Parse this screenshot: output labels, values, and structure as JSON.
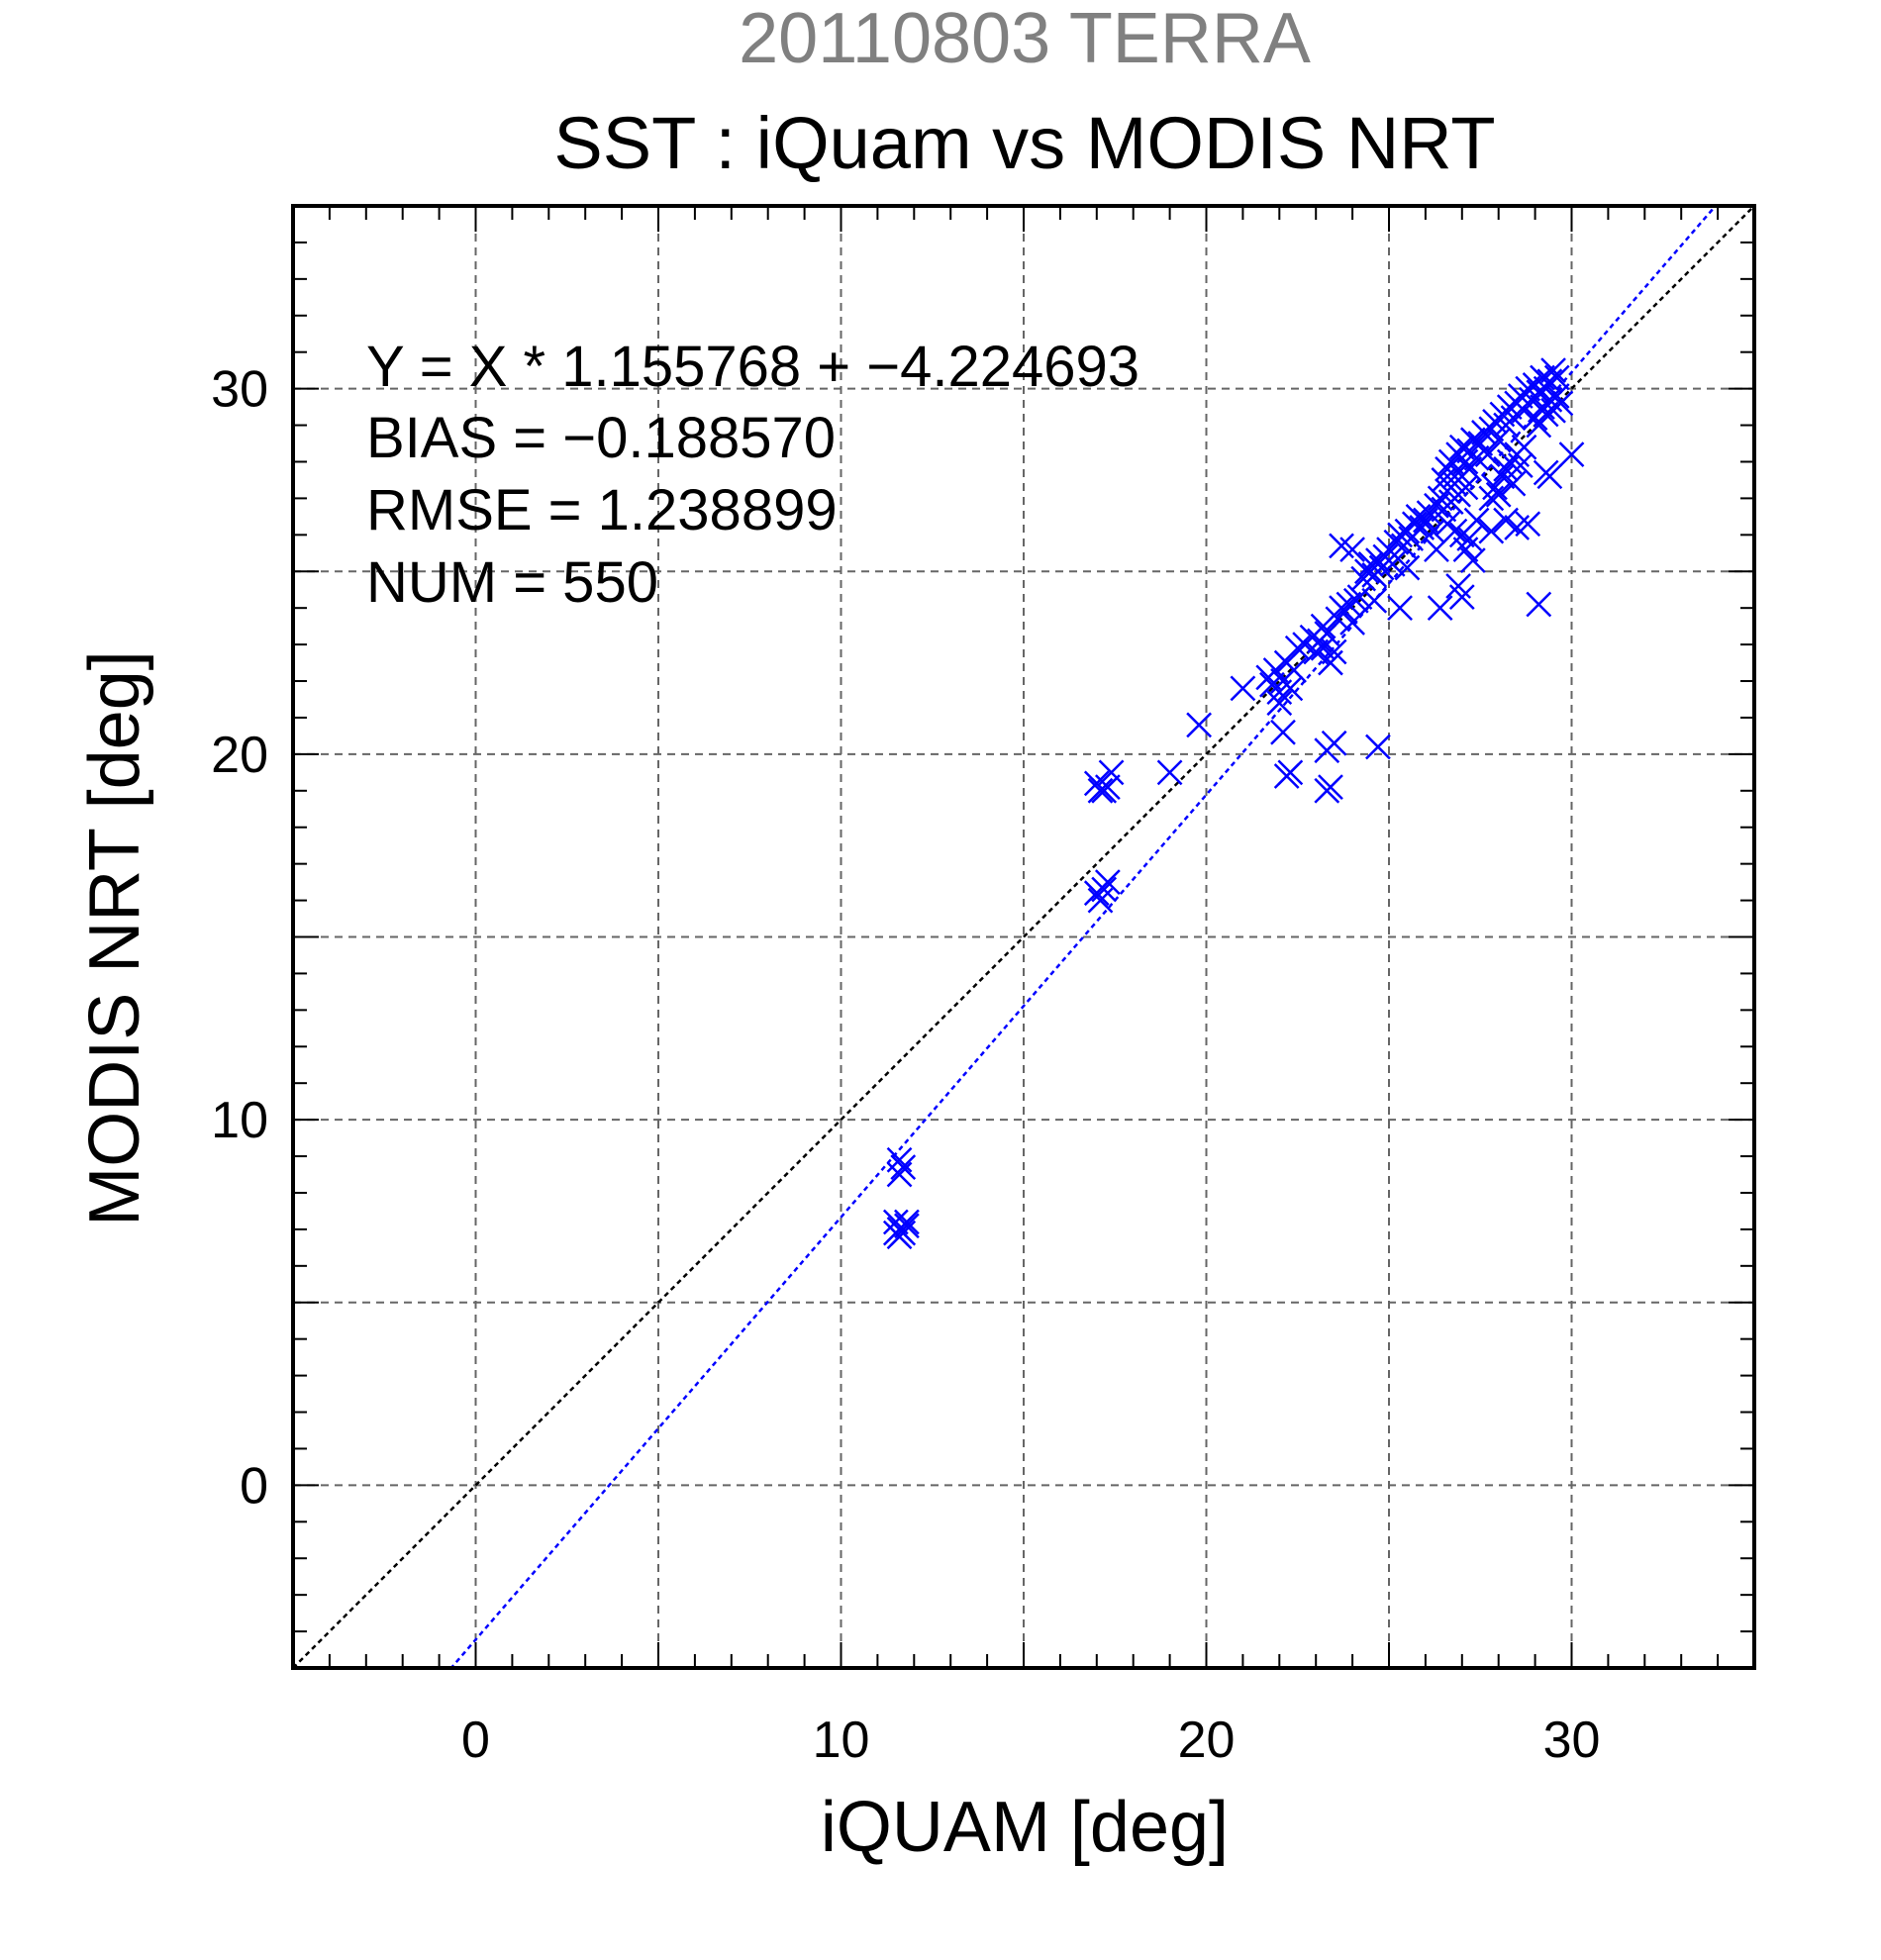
{
  "chart_data": {
    "type": "scatter",
    "suptitle": "20110803 TERRA",
    "title": "SST : iQuam vs MODIS NRT",
    "xlabel": "iQUAM [deg]",
    "ylabel": "MODIS NRT [deg]",
    "xlim": [
      -5,
      35
    ],
    "ylim": [
      -5,
      35
    ],
    "xticks": [
      0,
      10,
      20,
      30
    ],
    "yticks": [
      0,
      10,
      20,
      30
    ],
    "minor_step": 1,
    "grid": true,
    "grid_step": 5,
    "annotations": [
      "Y = X * 1.155768 + −4.224693",
      "BIAS = −0.188570",
      "RMSE = 1.238899",
      "NUM = 550"
    ],
    "regression": {
      "slope": 1.155768,
      "intercept": -4.224693,
      "color": "#0000ff"
    },
    "identity_line": {
      "color": "#000000"
    },
    "marker": "x",
    "marker_color": "#0000ff",
    "series": [
      {
        "points": [
          [
            11.6,
            8.9
          ],
          [
            11.7,
            8.7
          ],
          [
            11.6,
            8.5
          ],
          [
            11.5,
            7.2
          ],
          [
            11.6,
            7.0
          ],
          [
            11.7,
            6.9
          ],
          [
            11.8,
            7.1
          ],
          [
            11.6,
            6.8
          ],
          [
            11.8,
            7.2
          ],
          [
            11.5,
            6.9
          ],
          [
            17.0,
            19.2
          ],
          [
            17.1,
            19.0
          ],
          [
            17.3,
            19.1
          ],
          [
            17.2,
            19.0
          ],
          [
            17.4,
            19.5
          ],
          [
            17.0,
            16.2
          ],
          [
            17.1,
            16.0
          ],
          [
            17.3,
            16.5
          ],
          [
            17.2,
            16.3
          ],
          [
            19.0,
            19.5
          ],
          [
            19.8,
            20.8
          ],
          [
            21.0,
            21.8
          ],
          [
            21.7,
            22.1
          ],
          [
            21.8,
            21.9
          ],
          [
            21.9,
            22.3
          ],
          [
            22.0,
            21.7
          ],
          [
            22.0,
            21.4
          ],
          [
            22.1,
            22.0
          ],
          [
            22.2,
            22.5
          ],
          [
            22.3,
            21.8
          ],
          [
            22.4,
            22.3
          ],
          [
            22.5,
            22.9
          ],
          [
            22.2,
            19.4
          ],
          [
            22.3,
            19.5
          ],
          [
            22.1,
            20.6
          ],
          [
            23.3,
            19.0
          ],
          [
            23.4,
            19.1
          ],
          [
            23.5,
            20.3
          ],
          [
            23.3,
            20.1
          ],
          [
            24.7,
            20.2
          ],
          [
            22.7,
            23.0
          ],
          [
            22.9,
            23.2
          ],
          [
            23.0,
            22.8
          ],
          [
            23.1,
            23.1
          ],
          [
            23.2,
            22.9
          ],
          [
            23.3,
            23.3
          ],
          [
            23.4,
            22.5
          ],
          [
            23.5,
            22.8
          ],
          [
            23.2,
            23.5
          ],
          [
            23.6,
            23.7
          ],
          [
            23.7,
            24.0
          ],
          [
            23.8,
            23.9
          ],
          [
            23.9,
            24.1
          ],
          [
            24.0,
            23.6
          ],
          [
            24.1,
            24.2
          ],
          [
            24.2,
            24.3
          ],
          [
            23.7,
            25.7
          ],
          [
            24.0,
            25.6
          ],
          [
            24.3,
            24.8
          ],
          [
            24.4,
            25.0
          ],
          [
            24.5,
            25.2
          ],
          [
            24.6,
            24.9
          ],
          [
            24.7,
            25.3
          ],
          [
            24.8,
            25.1
          ],
          [
            24.9,
            25.4
          ],
          [
            25.0,
            25.6
          ],
          [
            25.1,
            25.2
          ],
          [
            24.6,
            24.2
          ],
          [
            25.3,
            24.0
          ],
          [
            25.2,
            25.8
          ],
          [
            25.3,
            26.0
          ],
          [
            25.4,
            25.7
          ],
          [
            25.5,
            26.1
          ],
          [
            25.6,
            25.9
          ],
          [
            25.7,
            26.3
          ],
          [
            25.8,
            26.5
          ],
          [
            25.9,
            26.2
          ],
          [
            26.0,
            26.4
          ],
          [
            26.1,
            26.6
          ],
          [
            26.2,
            26.1
          ],
          [
            26.3,
            26.8
          ],
          [
            26.4,
            27.0
          ],
          [
            26.5,
            26.7
          ],
          [
            26.6,
            27.2
          ],
          [
            26.7,
            26.9
          ],
          [
            26.8,
            27.4
          ],
          [
            26.9,
            27.1
          ],
          [
            27.0,
            27.6
          ],
          [
            27.1,
            27.3
          ],
          [
            27.2,
            27.8
          ],
          [
            26.5,
            27.5
          ],
          [
            26.6,
            27.8
          ],
          [
            26.7,
            28.0
          ],
          [
            26.8,
            27.6
          ],
          [
            26.9,
            28.2
          ],
          [
            27.0,
            28.4
          ],
          [
            27.1,
            28.0
          ],
          [
            27.2,
            28.3
          ],
          [
            27.3,
            28.6
          ],
          [
            27.4,
            28.1
          ],
          [
            26.6,
            26.3
          ],
          [
            26.8,
            26.1
          ],
          [
            27.0,
            26.0
          ],
          [
            27.1,
            25.6
          ],
          [
            27.3,
            25.3
          ],
          [
            26.9,
            24.6
          ],
          [
            27.0,
            24.3
          ],
          [
            26.4,
            24.0
          ],
          [
            27.2,
            25.9
          ],
          [
            27.4,
            26.4
          ],
          [
            27.5,
            28.5
          ],
          [
            27.6,
            28.8
          ],
          [
            27.7,
            28.2
          ],
          [
            27.8,
            28.9
          ],
          [
            27.9,
            29.1
          ],
          [
            28.0,
            28.6
          ],
          [
            28.1,
            29.3
          ],
          [
            28.2,
            29.0
          ],
          [
            28.3,
            29.5
          ],
          [
            28.4,
            29.2
          ],
          [
            27.8,
            27.0
          ],
          [
            27.9,
            27.3
          ],
          [
            28.0,
            27.1
          ],
          [
            28.1,
            27.6
          ],
          [
            28.2,
            27.8
          ],
          [
            28.3,
            28.0
          ],
          [
            28.4,
            27.4
          ],
          [
            28.5,
            28.2
          ],
          [
            28.6,
            27.9
          ],
          [
            28.7,
            28.4
          ],
          [
            28.5,
            29.6
          ],
          [
            28.6,
            29.8
          ],
          [
            28.7,
            29.4
          ],
          [
            28.8,
            30.0
          ],
          [
            28.9,
            29.7
          ],
          [
            29.0,
            30.1
          ],
          [
            29.1,
            29.9
          ],
          [
            29.2,
            30.3
          ],
          [
            29.3,
            30.0
          ],
          [
            29.4,
            30.2
          ],
          [
            29.0,
            29.2
          ],
          [
            29.1,
            29.0
          ],
          [
            29.2,
            29.5
          ],
          [
            29.3,
            29.3
          ],
          [
            29.4,
            29.7
          ],
          [
            29.5,
            29.4
          ],
          [
            29.6,
            29.8
          ],
          [
            29.7,
            29.6
          ],
          [
            29.5,
            30.5
          ],
          [
            29.6,
            30.3
          ],
          [
            28.2,
            26.4
          ],
          [
            28.5,
            26.2
          ],
          [
            28.8,
            26.3
          ],
          [
            29.3,
            27.7
          ],
          [
            29.4,
            27.6
          ],
          [
            30.0,
            28.2
          ],
          [
            29.1,
            24.1
          ],
          [
            27.8,
            26.1
          ],
          [
            26.3,
            25.6
          ],
          [
            25.5,
            25.1
          ]
        ]
      }
    ]
  }
}
